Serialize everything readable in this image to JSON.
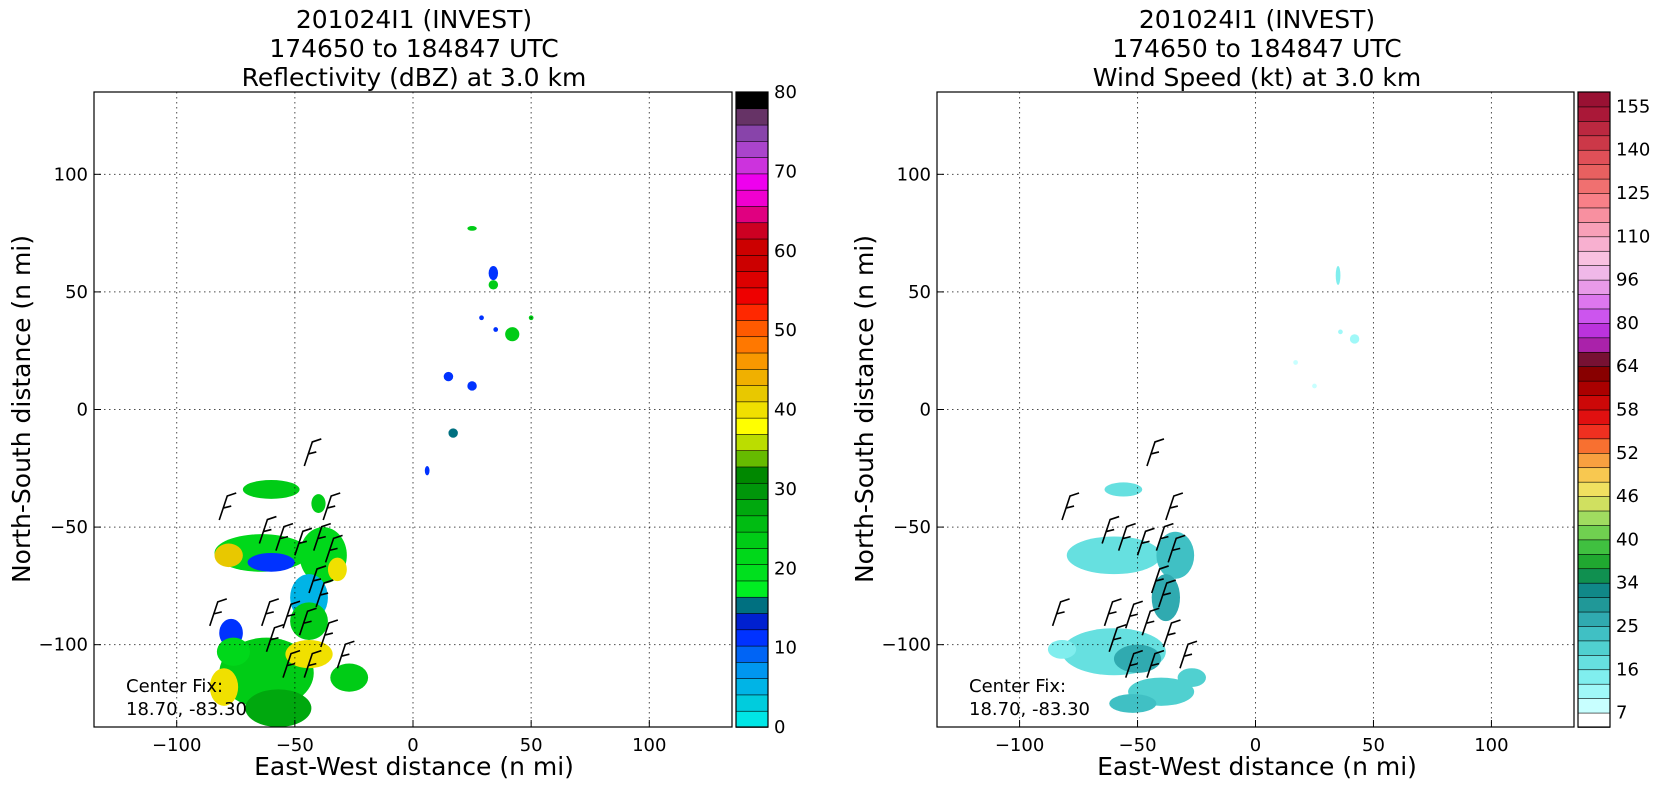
{
  "chart_data": [
    {
      "type": "heatmap",
      "title_lines": [
        "201024I1 (INVEST)",
        "174650 to 184847 UTC",
        "Reflectivity (dBZ) at 3.0 km"
      ],
      "xlabel": "East-West distance (n mi)",
      "ylabel": "North-South distance (n mi)",
      "xlim": [
        -135,
        135
      ],
      "ylim": [
        -135,
        135
      ],
      "xticks": [
        "−100",
        "−50",
        "0",
        "50",
        "100"
      ],
      "yticks": [
        "−100",
        "−50",
        "0",
        "50",
        "100"
      ],
      "grid": true,
      "center_fix_label": "Center Fix:",
      "center_fix_value": "18.70, -83.30",
      "colorbar": {
        "levels": [
          0,
          80
        ],
        "tick_labels": [
          "0",
          "10",
          "20",
          "30",
          "40",
          "50",
          "60",
          "70",
          "80"
        ],
        "colors": [
          "#00e6e6",
          "#00ccdd",
          "#00b4e6",
          "#0096f0",
          "#0064f5",
          "#0032ff",
          "#0020d0",
          "#007080",
          "#00ee22",
          "#00e01e",
          "#00d81a",
          "#00cc16",
          "#00bc12",
          "#00a80e",
          "#00960a",
          "#008800",
          "#66bb00",
          "#bbdd00",
          "#ffff00",
          "#f0e000",
          "#e8c800",
          "#f0b000",
          "#f89800",
          "#ff7800",
          "#ff5a00",
          "#ff2800",
          "#ee0000",
          "#dd0000",
          "#cc0000",
          "#cc0000",
          "#cc0022",
          "#e00080",
          "#f000d0",
          "#ee00ee",
          "#cc33dd",
          "#aa44cc",
          "#8844aa",
          "#663366",
          "#000000"
        ]
      },
      "wind_barbs": [
        {
          "x": -46,
          "y": -24
        },
        {
          "x": -82,
          "y": -47
        },
        {
          "x": -38,
          "y": -47
        },
        {
          "x": -65,
          "y": -57
        },
        {
          "x": -58,
          "y": -60
        },
        {
          "x": -50,
          "y": -62
        },
        {
          "x": -42,
          "y": -60
        },
        {
          "x": -37,
          "y": -65
        },
        {
          "x": -44,
          "y": -78
        },
        {
          "x": -86,
          "y": -92
        },
        {
          "x": -64,
          "y": -92
        },
        {
          "x": -55,
          "y": -93
        },
        {
          "x": -41,
          "y": -84
        },
        {
          "x": -62,
          "y": -103
        },
        {
          "x": -48,
          "y": -96
        },
        {
          "x": -39,
          "y": -101
        },
        {
          "x": -55,
          "y": -114
        },
        {
          "x": -46,
          "y": -114
        },
        {
          "x": -32,
          "y": -110
        }
      ],
      "data_regions": [
        {
          "type": "patch",
          "x": -64,
          "y": -61,
          "rx": 20,
          "ry": 8,
          "color": "#00d81a"
        },
        {
          "type": "patch",
          "x": -78,
          "y": -62,
          "rx": 6,
          "ry": 5,
          "color": "#e8c800"
        },
        {
          "type": "patch",
          "x": -60,
          "y": -65,
          "rx": 10,
          "ry": 4,
          "color": "#0032ff"
        },
        {
          "type": "patch",
          "x": -60,
          "y": -34,
          "rx": 12,
          "ry": 4,
          "color": "#00cc16"
        },
        {
          "type": "patch",
          "x": -40,
          "y": -40,
          "rx": 3,
          "ry": 4,
          "color": "#00cc16"
        },
        {
          "type": "patch",
          "x": -38,
          "y": -62,
          "rx": 10,
          "ry": 12,
          "color": "#00d81a"
        },
        {
          "type": "patch",
          "x": -32,
          "y": -68,
          "rx": 4,
          "ry": 5,
          "color": "#f0e000"
        },
        {
          "type": "patch",
          "x": -44,
          "y": -80,
          "rx": 8,
          "ry": 10,
          "color": "#00b4e6"
        },
        {
          "type": "patch",
          "x": -44,
          "y": -90,
          "rx": 8,
          "ry": 8,
          "color": "#00cc16"
        },
        {
          "type": "patch",
          "x": -62,
          "y": -112,
          "rx": 20,
          "ry": 15,
          "color": "#00cc16"
        },
        {
          "type": "patch",
          "x": -44,
          "y": -104,
          "rx": 10,
          "ry": 6,
          "color": "#f0e000"
        },
        {
          "type": "patch",
          "x": -77,
          "y": -95,
          "rx": 5,
          "ry": 6,
          "color": "#0032ff"
        },
        {
          "type": "patch",
          "x": -80,
          "y": -118,
          "rx": 6,
          "ry": 8,
          "color": "#f0e000"
        },
        {
          "type": "patch",
          "x": -27,
          "y": -114,
          "rx": 8,
          "ry": 6,
          "color": "#00cc16"
        },
        {
          "type": "patch",
          "x": -57,
          "y": -127,
          "rx": 14,
          "ry": 8,
          "color": "#00a80e"
        },
        {
          "type": "patch",
          "x": -76,
          "y": -103,
          "rx": 7,
          "ry": 6,
          "color": "#00d81a"
        },
        {
          "type": "patch",
          "x": 34,
          "y": 58,
          "rx": 2,
          "ry": 3,
          "color": "#0032ff"
        },
        {
          "type": "patch",
          "x": 34,
          "y": 53,
          "rx": 2,
          "ry": 2,
          "color": "#00cc16"
        },
        {
          "type": "patch",
          "x": 25,
          "y": 77,
          "rx": 2,
          "ry": 1,
          "color": "#00cc16"
        },
        {
          "type": "patch",
          "x": 42,
          "y": 32,
          "rx": 3,
          "ry": 3,
          "color": "#00cc16"
        },
        {
          "type": "patch",
          "x": 50,
          "y": 39,
          "rx": 1,
          "ry": 1,
          "color": "#00cc16"
        },
        {
          "type": "patch",
          "x": 35,
          "y": 34,
          "rx": 1,
          "ry": 1,
          "color": "#0032ff"
        },
        {
          "type": "patch",
          "x": 29,
          "y": 39,
          "rx": 1,
          "ry": 1,
          "color": "#0032ff"
        },
        {
          "type": "patch",
          "x": 15,
          "y": 14,
          "rx": 2,
          "ry": 2,
          "color": "#0032ff"
        },
        {
          "type": "patch",
          "x": 25,
          "y": 10,
          "rx": 2,
          "ry": 2,
          "color": "#0032ff"
        },
        {
          "type": "patch",
          "x": 17,
          "y": -10,
          "rx": 2,
          "ry": 2,
          "color": "#007080"
        },
        {
          "type": "patch",
          "x": 6,
          "y": -26,
          "rx": 1,
          "ry": 2,
          "color": "#0032ff"
        }
      ]
    },
    {
      "type": "heatmap",
      "title_lines": [
        "201024I1 (INVEST)",
        "174650 to 184847 UTC",
        "Wind Speed (kt) at 3.0 km"
      ],
      "xlabel": "East-West distance (n mi)",
      "ylabel": "North-South distance (n mi)",
      "xlim": [
        -135,
        135
      ],
      "ylim": [
        -135,
        135
      ],
      "xticks": [
        "−100",
        "−50",
        "0",
        "50",
        "100"
      ],
      "yticks": [
        "−100",
        "−50",
        "0",
        "50",
        "100"
      ],
      "grid": true,
      "center_fix_label": "Center Fix:",
      "center_fix_value": "18.70, -83.30",
      "colorbar": {
        "tick_labels": [
          "7",
          "16",
          "25",
          "34",
          "40",
          "46",
          "52",
          "58",
          "64",
          "80",
          "96",
          "110",
          "125",
          "140",
          "155"
        ],
        "colors": [
          "#ffffff",
          "#c8ffff",
          "#a0f8f8",
          "#80eeee",
          "#66e0e0",
          "#50d0d0",
          "#40c0c4",
          "#30aab0",
          "#209898",
          "#108888",
          "#109050",
          "#20a830",
          "#40c040",
          "#70d050",
          "#a0dc60",
          "#d0e060",
          "#f0e060",
          "#f8c850",
          "#f8a040",
          "#f87030",
          "#f03020",
          "#e01010",
          "#cc0808",
          "#aa0000",
          "#880000",
          "#771133",
          "#aa22aa",
          "#bb33dd",
          "#cc55ee",
          "#dd77ee",
          "#e89ae8",
          "#f0b8e8",
          "#f8c0e0",
          "#f8b0d0",
          "#f8a0b8",
          "#f890a0",
          "#f88088",
          "#f07070",
          "#e86060",
          "#e05058",
          "#cc3848",
          "#bb2840",
          "#aa1838",
          "#991133"
        ]
      },
      "wind_barbs": [
        {
          "x": -46,
          "y": -24
        },
        {
          "x": -82,
          "y": -47
        },
        {
          "x": -38,
          "y": -47
        },
        {
          "x": -65,
          "y": -57
        },
        {
          "x": -58,
          "y": -60
        },
        {
          "x": -50,
          "y": -62
        },
        {
          "x": -42,
          "y": -60
        },
        {
          "x": -37,
          "y": -65
        },
        {
          "x": -44,
          "y": -78
        },
        {
          "x": -86,
          "y": -92
        },
        {
          "x": -64,
          "y": -92
        },
        {
          "x": -55,
          "y": -93
        },
        {
          "x": -41,
          "y": -84
        },
        {
          "x": -62,
          "y": -103
        },
        {
          "x": -48,
          "y": -96
        },
        {
          "x": -39,
          "y": -101
        },
        {
          "x": -55,
          "y": -114
        },
        {
          "x": -46,
          "y": -114
        },
        {
          "x": -32,
          "y": -110
        }
      ],
      "data_regions": [
        {
          "type": "patch",
          "x": -60,
          "y": -62,
          "rx": 20,
          "ry": 8,
          "color": "#66e0e0"
        },
        {
          "type": "patch",
          "x": -34,
          "y": -62,
          "rx": 8,
          "ry": 10,
          "color": "#40c0c4"
        },
        {
          "type": "patch",
          "x": -38,
          "y": -80,
          "rx": 6,
          "ry": 10,
          "color": "#30aab0"
        },
        {
          "type": "patch",
          "x": -56,
          "y": -34,
          "rx": 8,
          "ry": 3,
          "color": "#66e0e0"
        },
        {
          "type": "patch",
          "x": -60,
          "y": -103,
          "rx": 22,
          "ry": 10,
          "color": "#66e0e0"
        },
        {
          "type": "patch",
          "x": -50,
          "y": -106,
          "rx": 10,
          "ry": 6,
          "color": "#30aab0"
        },
        {
          "type": "patch",
          "x": -40,
          "y": -120,
          "rx": 14,
          "ry": 6,
          "color": "#50d0d0"
        },
        {
          "type": "patch",
          "x": -82,
          "y": -102,
          "rx": 6,
          "ry": 4,
          "color": "#80eeee"
        },
        {
          "type": "patch",
          "x": -27,
          "y": -114,
          "rx": 6,
          "ry": 4,
          "color": "#50d0d0"
        },
        {
          "type": "patch",
          "x": -52,
          "y": -125,
          "rx": 10,
          "ry": 4,
          "color": "#40c0c4"
        },
        {
          "type": "patch",
          "x": 35,
          "y": 57,
          "rx": 1,
          "ry": 4,
          "color": "#80eeee"
        },
        {
          "type": "patch",
          "x": 42,
          "y": 30,
          "rx": 2,
          "ry": 2,
          "color": "#a0f8f8"
        },
        {
          "type": "patch",
          "x": 36,
          "y": 33,
          "rx": 1,
          "ry": 1,
          "color": "#a0f8f8"
        },
        {
          "type": "patch",
          "x": 25,
          "y": 10,
          "rx": 1,
          "ry": 1,
          "color": "#c8ffff"
        },
        {
          "type": "patch",
          "x": 17,
          "y": 20,
          "rx": 1,
          "ry": 1,
          "color": "#c8ffff"
        }
      ]
    }
  ]
}
